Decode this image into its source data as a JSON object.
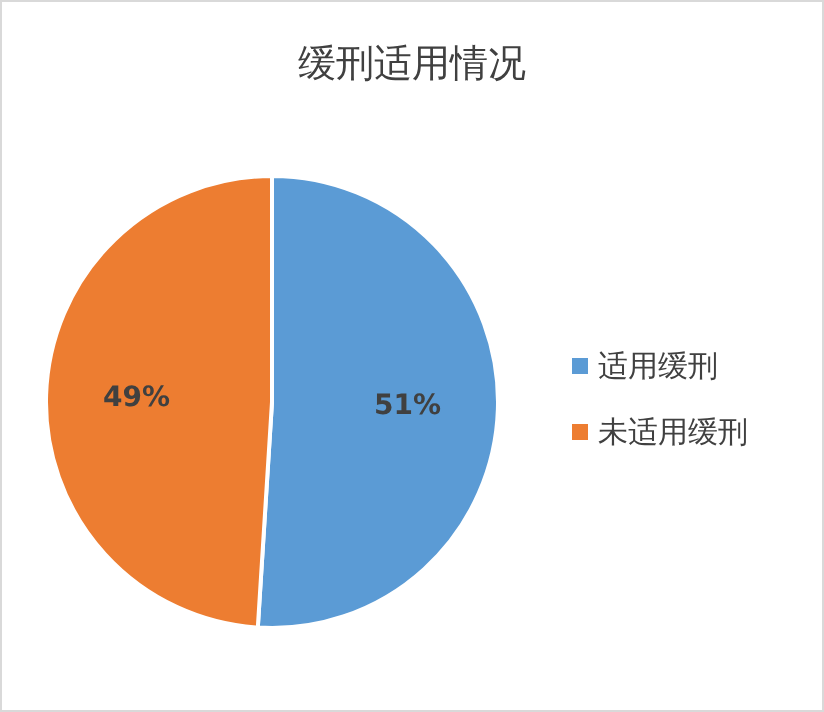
{
  "chart_data": {
    "type": "pie",
    "title": "缓刑适用情况",
    "categories": [
      "适用缓刑",
      "未适用缓刑"
    ],
    "values": [
      51,
      49
    ],
    "colors": [
      "#5b9bd5",
      "#ed7d31"
    ],
    "value_labels": [
      "51%",
      "49%"
    ],
    "legend": "right"
  }
}
